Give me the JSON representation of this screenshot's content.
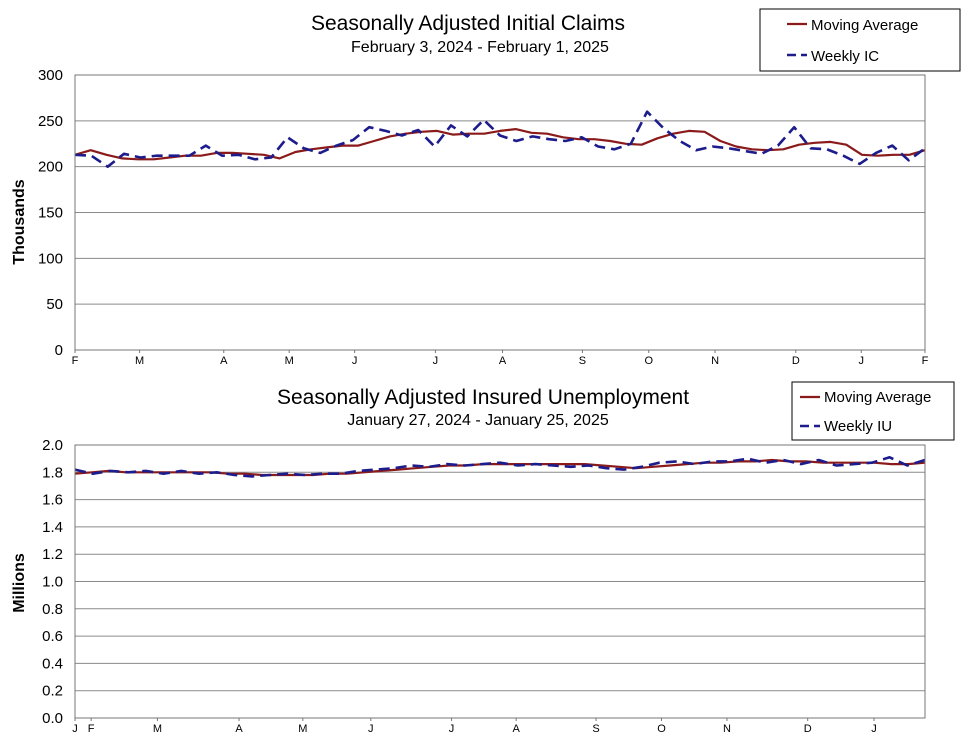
{
  "chart_data": [
    {
      "type": "line",
      "title": "Seasonally Adjusted Initial Claims",
      "subtitle": "February 3, 2024 - February 1, 2025",
      "ylabel": "Thousands",
      "ylim": [
        0,
        300
      ],
      "yticks": [
        "0",
        "50",
        "100",
        "150",
        "200",
        "250",
        "300"
      ],
      "grid": true,
      "legend_position": "top-right",
      "x_tick_labels": [
        "F",
        "M",
        "A",
        "M",
        "J",
        "J",
        "A",
        "S",
        "O",
        "N",
        "D",
        "J",
        "F"
      ],
      "series": [
        {
          "name": "Moving Average",
          "color": "#8B1A1A",
          "style": "solid",
          "values": [
            213,
            218,
            213,
            209,
            208,
            208,
            210,
            212,
            212,
            215,
            215,
            214,
            213,
            209,
            216,
            219,
            221,
            223,
            223,
            228,
            233,
            236,
            238,
            239,
            235,
            236,
            236,
            239,
            241,
            237,
            236,
            232,
            230,
            230,
            228,
            225,
            224,
            231,
            236,
            239,
            238,
            228,
            222,
            219,
            218,
            219,
            224,
            226,
            227,
            224,
            213,
            212,
            213,
            213,
            218
          ]
        },
        {
          "name": "Weekly IC",
          "color": "#1C1C8C",
          "style": "dashed",
          "values": [
            213,
            212,
            200,
            214,
            210,
            212,
            212,
            212,
            223,
            212,
            213,
            208,
            210,
            232,
            220,
            215,
            223,
            229,
            243,
            239,
            234,
            240,
            222,
            245,
            233,
            251,
            234,
            228,
            233,
            230,
            228,
            232,
            222,
            219,
            225,
            260,
            242,
            228,
            218,
            222,
            220,
            217,
            214,
            223,
            243,
            220,
            219,
            212,
            203,
            215,
            223,
            207,
            220
          ]
        }
      ]
    },
    {
      "type": "line",
      "title": "Seasonally Adjusted Insured Unemployment",
      "subtitle": "January 27, 2024 - January 25, 2025",
      "ylabel": "Millions",
      "ylim": [
        0,
        2.0
      ],
      "yticks": [
        "0.0",
        "0.2",
        "0.4",
        "0.6",
        "0.8",
        "1.0",
        "1.2",
        "1.4",
        "1.6",
        "1.8",
        "2.0"
      ],
      "grid": true,
      "legend_position": "top-right",
      "x_tick_labels": [
        "J",
        "F",
        "M",
        "A",
        "M",
        "J",
        "J",
        "A",
        "S",
        "O",
        "N",
        "D",
        "J"
      ],
      "series": [
        {
          "name": "Moving Average",
          "color": "#8B1A1A",
          "style": "solid",
          "values": [
            1.79,
            1.8,
            1.81,
            1.8,
            1.8,
            1.8,
            1.8,
            1.8,
            1.8,
            1.79,
            1.79,
            1.78,
            1.78,
            1.78,
            1.78,
            1.79,
            1.79,
            1.8,
            1.81,
            1.82,
            1.83,
            1.84,
            1.85,
            1.85,
            1.86,
            1.86,
            1.86,
            1.86,
            1.86,
            1.86,
            1.86,
            1.85,
            1.84,
            1.83,
            1.84,
            1.85,
            1.86,
            1.87,
            1.87,
            1.88,
            1.88,
            1.89,
            1.88,
            1.88,
            1.87,
            1.87,
            1.87,
            1.87,
            1.86,
            1.86,
            1.87
          ]
        },
        {
          "name": "Weekly IU",
          "color": "#1C1C8C",
          "style": "dashed",
          "values": [
            1.82,
            1.79,
            1.81,
            1.8,
            1.81,
            1.79,
            1.81,
            1.79,
            1.8,
            1.78,
            1.77,
            1.78,
            1.79,
            1.78,
            1.79,
            1.79,
            1.81,
            1.82,
            1.83,
            1.85,
            1.84,
            1.86,
            1.85,
            1.86,
            1.87,
            1.85,
            1.86,
            1.85,
            1.84,
            1.85,
            1.83,
            1.82,
            1.84,
            1.87,
            1.88,
            1.86,
            1.88,
            1.88,
            1.9,
            1.87,
            1.89,
            1.86,
            1.89,
            1.85,
            1.86,
            1.87,
            1.91,
            1.85,
            1.89
          ]
        }
      ]
    }
  ]
}
